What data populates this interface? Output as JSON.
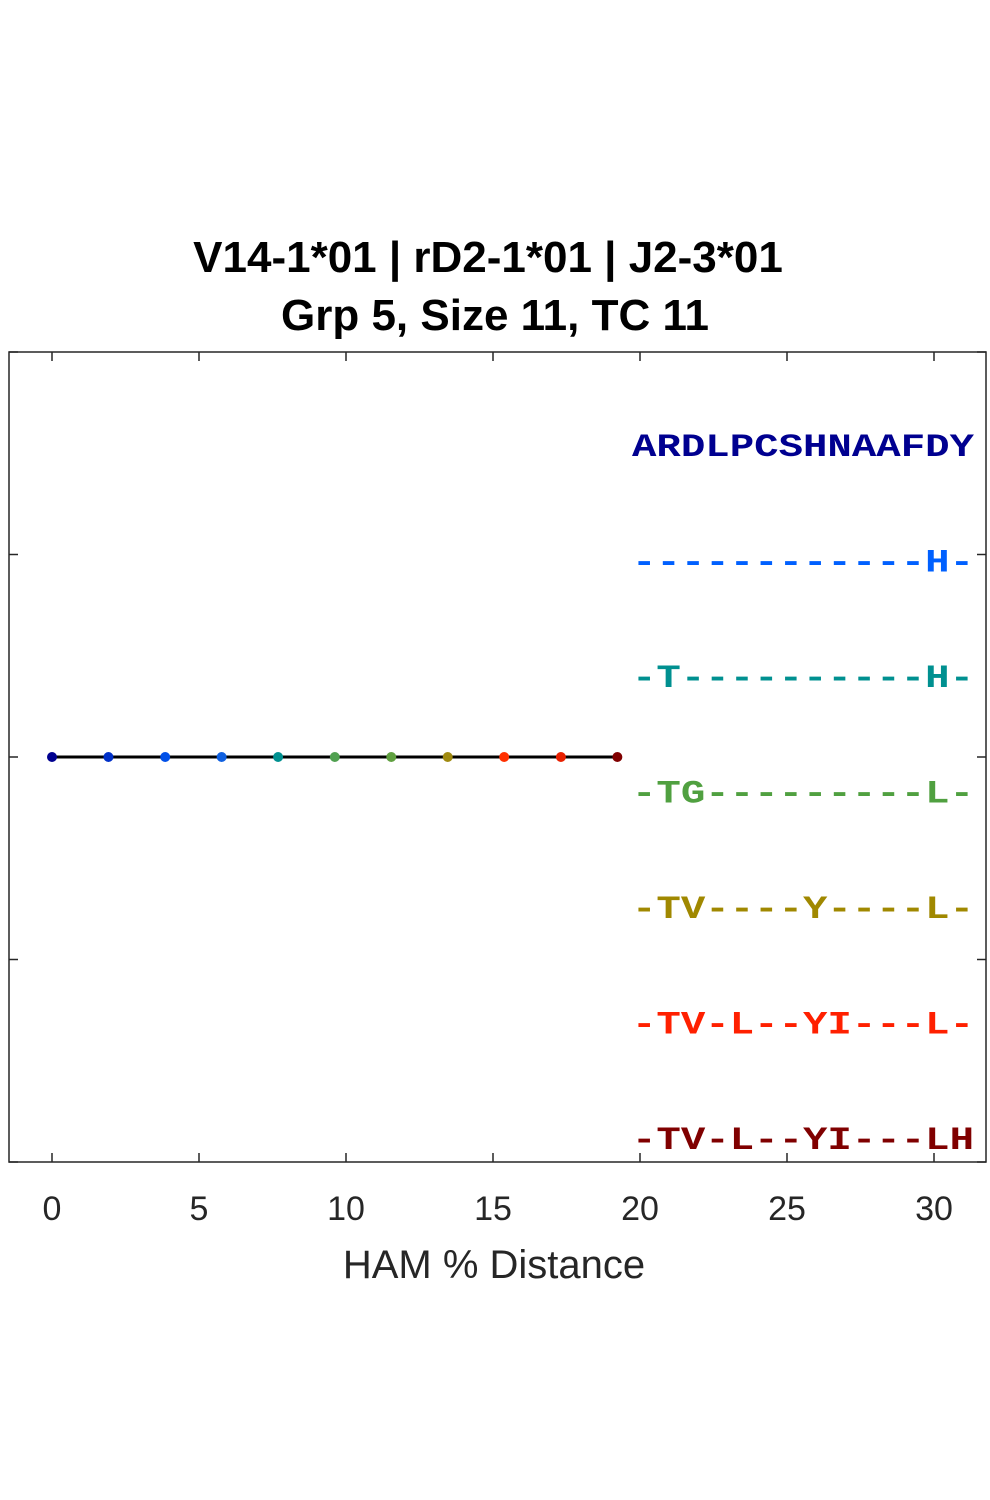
{
  "chart_data": {
    "type": "line",
    "title": [
      "V14-1*01 | rD2-1*01 | J2-3*01",
      "Grp 5, Size 11, TC 11"
    ],
    "xlabel": "HAM % Distance",
    "ylabel": "",
    "xlim": [
      -1.5,
      31.5
    ],
    "ylim": [
      0,
      4
    ],
    "x_ticks": [
      0,
      5,
      10,
      15,
      20,
      25,
      30
    ],
    "y_ticks": [
      0,
      1,
      2,
      3,
      4
    ],
    "grid": false,
    "lineage": {
      "line_color": "#000000",
      "y": 2,
      "points": [
        {
          "x": 0.0,
          "color": "#00008F"
        },
        {
          "x": 1.92,
          "color": "#0030C8"
        },
        {
          "x": 3.85,
          "color": "#0050E8"
        },
        {
          "x": 5.77,
          "color": "#1060E0"
        },
        {
          "x": 7.69,
          "color": "#009090"
        },
        {
          "x": 9.62,
          "color": "#50A050"
        },
        {
          "x": 11.54,
          "color": "#60A040"
        },
        {
          "x": 13.46,
          "color": "#A08A10"
        },
        {
          "x": 15.38,
          "color": "#FF3000"
        },
        {
          "x": 17.31,
          "color": "#E82000"
        },
        {
          "x": 19.23,
          "color": "#800000"
        }
      ]
    },
    "sequences": [
      {
        "text": "ARDLPCSHNAAFDY",
        "color": "#000090"
      },
      {
        "text": "------------H-",
        "color": "#0060FF"
      },
      {
        "text": "-T----------H-",
        "color": "#009090"
      },
      {
        "text": "-TG---------L-",
        "color": "#50A040"
      },
      {
        "text": "-TV----Y----L-",
        "color": "#A08800"
      },
      {
        "text": "-TV-L--YI---L-",
        "color": "#FF2000"
      },
      {
        "text": "-TV-L--YI---LH",
        "color": "#800000"
      }
    ]
  }
}
